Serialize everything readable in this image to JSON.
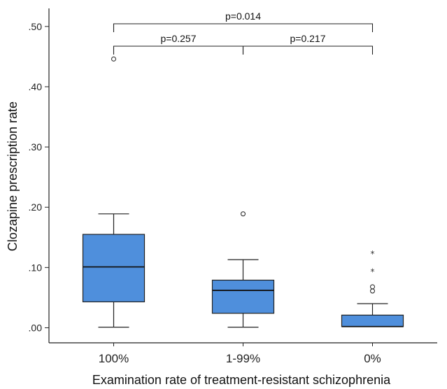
{
  "chart_data": {
    "type": "box",
    "xlabel": "Examination rate of treatment-resistant schizophrenia",
    "ylabel": "Clozapine prescription rate",
    "ylim": [
      -0.025,
      0.53
    ],
    "y_ticks": [
      0.0,
      0.1,
      0.2,
      0.3,
      0.4,
      0.5
    ],
    "y_tick_labels": [
      ".00",
      ".10",
      ".20",
      ".30",
      ".40",
      ".50"
    ],
    "grid": false,
    "box_color": "#4f8fdc",
    "categories": [
      "100%",
      "1-99%",
      "0%"
    ],
    "boxes": [
      {
        "category": "100%",
        "min": 0.001,
        "q1": 0.043,
        "median": 0.101,
        "q3": 0.155,
        "max": 0.189,
        "outliers": [
          0.446
        ],
        "extremes": []
      },
      {
        "category": "1-99%",
        "min": 0.001,
        "q1": 0.024,
        "median": 0.062,
        "q3": 0.079,
        "max": 0.113,
        "outliers": [
          0.189
        ],
        "extremes": []
      },
      {
        "category": "0%",
        "min": 0.002,
        "q1": 0.002,
        "median": 0.002,
        "q3": 0.021,
        "max": 0.04,
        "outliers": [
          0.068,
          0.061
        ],
        "extremes": [
          0.125,
          0.095
        ]
      }
    ],
    "comparisons": [
      {
        "from": 0,
        "to": 1,
        "label": "p=0.257",
        "level": 1
      },
      {
        "from": 1,
        "to": 2,
        "label": "p=0.217",
        "level": 1
      },
      {
        "from": 0,
        "to": 2,
        "label": "p=0.014",
        "level": 2
      }
    ]
  }
}
